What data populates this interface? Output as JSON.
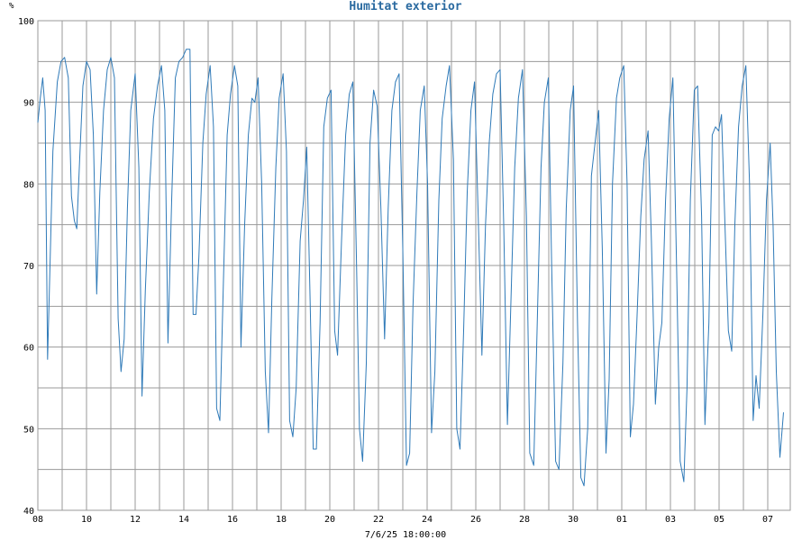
{
  "chart_data": {
    "type": "line",
    "title": "Humitat exterior",
    "unit_label": "%",
    "footer": "7/6/25 18:00:00",
    "grid": true,
    "ylim": [
      40,
      100
    ],
    "y_ticks": [
      "40",
      "50",
      "60",
      "70",
      "80",
      "90",
      "100"
    ],
    "x_range_days": [
      0,
      31
    ],
    "x_ticks": [
      {
        "label": "08",
        "day": 0
      },
      {
        "label": "10",
        "day": 2
      },
      {
        "label": "12",
        "day": 4
      },
      {
        "label": "14",
        "day": 6
      },
      {
        "label": "16",
        "day": 8
      },
      {
        "label": "18",
        "day": 10
      },
      {
        "label": "20",
        "day": 12
      },
      {
        "label": "22",
        "day": 14
      },
      {
        "label": "24",
        "day": 16
      },
      {
        "label": "26",
        "day": 18
      },
      {
        "label": "28",
        "day": 20
      },
      {
        "label": "30",
        "day": 22
      },
      {
        "label": "01",
        "day": 24
      },
      {
        "label": "03",
        "day": 26
      },
      {
        "label": "05",
        "day": 28
      },
      {
        "label": "07",
        "day": 30
      }
    ],
    "series": [
      {
        "color": "#2f7ab8",
        "points": [
          [
            0.0,
            87.5
          ],
          [
            0.1,
            90.5
          ],
          [
            0.2,
            93.0
          ],
          [
            0.3,
            89.0
          ],
          [
            0.4,
            58.5
          ],
          [
            0.5,
            70.0
          ],
          [
            0.62,
            84.0
          ],
          [
            0.8,
            92.5
          ],
          [
            0.95,
            95.0
          ],
          [
            1.1,
            95.5
          ],
          [
            1.25,
            93.0
          ],
          [
            1.38,
            78.5
          ],
          [
            1.5,
            75.5
          ],
          [
            1.6,
            74.5
          ],
          [
            1.72,
            83.0
          ],
          [
            1.85,
            92.0
          ],
          [
            2.0,
            95.0
          ],
          [
            2.15,
            94.0
          ],
          [
            2.28,
            86.0
          ],
          [
            2.42,
            66.5
          ],
          [
            2.55,
            79.0
          ],
          [
            2.7,
            89.0
          ],
          [
            2.85,
            94.0
          ],
          [
            3.0,
            95.5
          ],
          [
            3.15,
            93.0
          ],
          [
            3.3,
            63.5
          ],
          [
            3.42,
            57.0
          ],
          [
            3.55,
            61.0
          ],
          [
            3.68,
            77.0
          ],
          [
            3.82,
            89.0
          ],
          [
            4.0,
            93.5
          ],
          [
            4.15,
            82.0
          ],
          [
            4.28,
            54.0
          ],
          [
            4.42,
            67.0
          ],
          [
            4.58,
            79.0
          ],
          [
            4.75,
            88.0
          ],
          [
            4.92,
            92.0
          ],
          [
            5.08,
            94.5
          ],
          [
            5.22,
            89.0
          ],
          [
            5.35,
            60.5
          ],
          [
            5.5,
            78.0
          ],
          [
            5.65,
            93.0
          ],
          [
            5.8,
            95.0
          ],
          [
            5.95,
            95.5
          ],
          [
            6.1,
            96.5
          ],
          [
            6.25,
            96.5
          ],
          [
            6.38,
            64.0
          ],
          [
            6.5,
            64.0
          ],
          [
            6.62,
            71.0
          ],
          [
            6.78,
            85.0
          ],
          [
            6.92,
            91.0
          ],
          [
            7.08,
            94.5
          ],
          [
            7.22,
            87.0
          ],
          [
            7.35,
            52.5
          ],
          [
            7.48,
            51.0
          ],
          [
            7.62,
            67.0
          ],
          [
            7.78,
            86.0
          ],
          [
            7.92,
            91.0
          ],
          [
            8.08,
            94.5
          ],
          [
            8.22,
            92.0
          ],
          [
            8.35,
            60.0
          ],
          [
            8.5,
            75.0
          ],
          [
            8.65,
            86.0
          ],
          [
            8.8,
            90.5
          ],
          [
            8.92,
            90.0
          ],
          [
            9.05,
            93.0
          ],
          [
            9.2,
            80.0
          ],
          [
            9.35,
            57.0
          ],
          [
            9.48,
            49.5
          ],
          [
            9.62,
            66.0
          ],
          [
            9.78,
            82.0
          ],
          [
            9.92,
            90.5
          ],
          [
            10.08,
            93.5
          ],
          [
            10.22,
            84.0
          ],
          [
            10.35,
            51.0
          ],
          [
            10.48,
            49.0
          ],
          [
            10.62,
            55.0
          ],
          [
            10.78,
            73.0
          ],
          [
            10.92,
            78.0
          ],
          [
            11.05,
            84.5
          ],
          [
            11.18,
            67.0
          ],
          [
            11.32,
            47.5
          ],
          [
            11.45,
            47.5
          ],
          [
            11.6,
            63.0
          ],
          [
            11.75,
            87.0
          ],
          [
            11.9,
            90.5
          ],
          [
            12.05,
            91.5
          ],
          [
            12.2,
            62.0
          ],
          [
            12.32,
            59.0
          ],
          [
            12.48,
            73.0
          ],
          [
            12.65,
            86.0
          ],
          [
            12.8,
            91.0
          ],
          [
            12.95,
            92.5
          ],
          [
            13.1,
            70.0
          ],
          [
            13.22,
            50.0
          ],
          [
            13.35,
            46.0
          ],
          [
            13.5,
            58.0
          ],
          [
            13.65,
            85.0
          ],
          [
            13.8,
            91.5
          ],
          [
            13.95,
            89.5
          ],
          [
            14.1,
            77.0
          ],
          [
            14.25,
            61.0
          ],
          [
            14.4,
            77.0
          ],
          [
            14.55,
            89.0
          ],
          [
            14.7,
            92.5
          ],
          [
            14.85,
            93.5
          ],
          [
            15.0,
            72.0
          ],
          [
            15.15,
            45.5
          ],
          [
            15.28,
            47.0
          ],
          [
            15.42,
            65.0
          ],
          [
            15.58,
            79.0
          ],
          [
            15.72,
            89.0
          ],
          [
            15.88,
            92.0
          ],
          [
            16.02,
            80.0
          ],
          [
            16.18,
            49.5
          ],
          [
            16.32,
            57.0
          ],
          [
            16.48,
            78.0
          ],
          [
            16.62,
            88.0
          ],
          [
            16.78,
            92.0
          ],
          [
            16.92,
            94.5
          ],
          [
            17.08,
            83.0
          ],
          [
            17.22,
            50.0
          ],
          [
            17.35,
            47.5
          ],
          [
            17.5,
            62.0
          ],
          [
            17.65,
            79.0
          ],
          [
            17.8,
            89.0
          ],
          [
            17.95,
            92.5
          ],
          [
            18.1,
            76.0
          ],
          [
            18.25,
            59.0
          ],
          [
            18.4,
            75.0
          ],
          [
            18.55,
            85.0
          ],
          [
            18.7,
            91.0
          ],
          [
            18.85,
            93.5
          ],
          [
            19.0,
            94.0
          ],
          [
            19.15,
            75.0
          ],
          [
            19.3,
            50.5
          ],
          [
            19.45,
            66.0
          ],
          [
            19.6,
            82.0
          ],
          [
            19.75,
            90.5
          ],
          [
            19.92,
            94.0
          ],
          [
            20.08,
            76.0
          ],
          [
            20.22,
            47.0
          ],
          [
            20.38,
            45.5
          ],
          [
            20.52,
            62.0
          ],
          [
            20.68,
            82.0
          ],
          [
            20.82,
            90.0
          ],
          [
            20.98,
            93.0
          ],
          [
            21.12,
            70.0
          ],
          [
            21.28,
            46.0
          ],
          [
            21.42,
            45.0
          ],
          [
            21.58,
            58.0
          ],
          [
            21.72,
            77.0
          ],
          [
            21.88,
            89.0
          ],
          [
            22.02,
            92.0
          ],
          [
            22.18,
            63.0
          ],
          [
            22.32,
            44.0
          ],
          [
            22.45,
            43.0
          ],
          [
            22.6,
            50.0
          ],
          [
            22.75,
            81.0
          ],
          [
            22.9,
            85.0
          ],
          [
            23.05,
            89.0
          ],
          [
            23.2,
            72.0
          ],
          [
            23.35,
            47.0
          ],
          [
            23.48,
            56.0
          ],
          [
            23.62,
            80.0
          ],
          [
            23.78,
            90.5
          ],
          [
            23.92,
            93.0
          ],
          [
            24.08,
            94.5
          ],
          [
            24.22,
            80.0
          ],
          [
            24.35,
            49.0
          ],
          [
            24.48,
            53.0
          ],
          [
            24.62,
            63.0
          ],
          [
            24.78,
            76.0
          ],
          [
            24.92,
            83.0
          ],
          [
            25.08,
            86.5
          ],
          [
            25.22,
            73.0
          ],
          [
            25.38,
            53.0
          ],
          [
            25.52,
            60.0
          ],
          [
            25.65,
            63.0
          ],
          [
            25.8,
            78.0
          ],
          [
            25.95,
            88.0
          ],
          [
            26.1,
            93.0
          ],
          [
            26.25,
            70.0
          ],
          [
            26.4,
            46.0
          ],
          [
            26.55,
            43.5
          ],
          [
            26.68,
            55.0
          ],
          [
            26.82,
            78.0
          ],
          [
            26.98,
            91.5
          ],
          [
            27.12,
            92.0
          ],
          [
            27.28,
            76.0
          ],
          [
            27.42,
            50.5
          ],
          [
            27.58,
            63.0
          ],
          [
            27.72,
            86.0
          ],
          [
            27.85,
            87.0
          ],
          [
            27.98,
            86.5
          ],
          [
            28.1,
            88.5
          ],
          [
            28.25,
            74.0
          ],
          [
            28.38,
            62.0
          ],
          [
            28.52,
            59.5
          ],
          [
            28.65,
            75.0
          ],
          [
            28.8,
            87.0
          ],
          [
            28.95,
            92.0
          ],
          [
            29.1,
            94.5
          ],
          [
            29.25,
            80.0
          ],
          [
            29.4,
            51.0
          ],
          [
            29.52,
            56.5
          ],
          [
            29.65,
            52.5
          ],
          [
            29.8,
            64.0
          ],
          [
            29.95,
            78.0
          ],
          [
            30.1,
            85.0
          ],
          [
            30.22,
            75.0
          ],
          [
            30.35,
            57.0
          ],
          [
            30.5,
            46.5
          ],
          [
            30.65,
            52.0
          ]
        ]
      }
    ]
  }
}
